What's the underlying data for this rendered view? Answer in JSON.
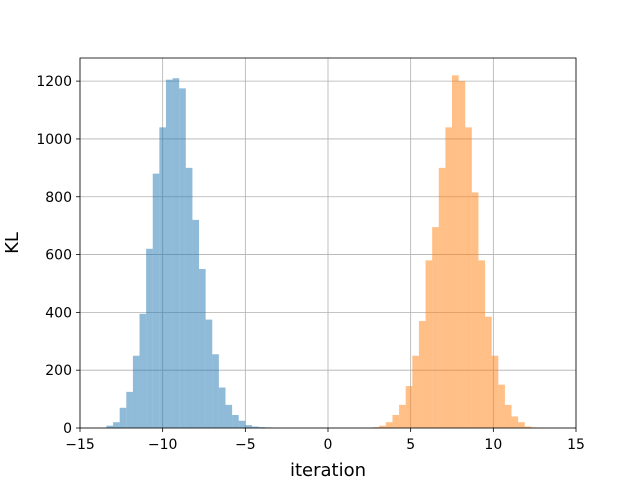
{
  "chart_data": {
    "type": "bar",
    "xlabel": "iteration",
    "ylabel": "KL",
    "xlim": [
      -15,
      15
    ],
    "ylim": [
      0,
      1280
    ],
    "x_ticks": [
      -15,
      -10,
      -5,
      0,
      5,
      10,
      15
    ],
    "x_tick_labels": [
      "−15",
      "−10",
      "−5",
      "0",
      "5",
      "10",
      "15"
    ],
    "y_ticks": [
      0,
      200,
      400,
      600,
      800,
      1000,
      1200
    ],
    "y_tick_labels": [
      "0",
      "200",
      "400",
      "600",
      "800",
      "1000",
      "1200"
    ],
    "grid": true,
    "series": [
      {
        "color": "#1f77b4",
        "alpha": 0.5,
        "bin_edges": [
          -13.4,
          -13.0,
          -12.6,
          -12.2,
          -11.8,
          -11.4,
          -11.0,
          -10.6,
          -10.2,
          -9.8,
          -9.4,
          -9.0,
          -8.6,
          -8.2,
          -7.8,
          -7.4,
          -7.0,
          -6.6,
          -6.2,
          -5.8,
          -5.4,
          -5.0,
          -4.6,
          -4.2,
          -3.8,
          -3.4,
          -3.0
        ],
        "counts": [
          8,
          20,
          70,
          125,
          250,
          395,
          620,
          880,
          1040,
          1205,
          1210,
          1175,
          900,
          720,
          550,
          375,
          255,
          140,
          80,
          45,
          25,
          10,
          5,
          3,
          2,
          1
        ]
      },
      {
        "color": "#ff7f0e",
        "alpha": 0.5,
        "bin_edges": [
          2.7,
          3.1,
          3.5,
          3.9,
          4.3,
          4.7,
          5.1,
          5.5,
          5.9,
          6.3,
          6.7,
          7.1,
          7.5,
          7.9,
          8.3,
          8.7,
          9.1,
          9.5,
          9.9,
          10.3,
          10.7,
          11.1,
          11.5,
          11.9,
          12.3,
          12.7,
          13.1
        ],
        "counts": [
          3,
          8,
          20,
          45,
          80,
          145,
          250,
          370,
          580,
          695,
          900,
          1040,
          1220,
          1200,
          1040,
          815,
          580,
          385,
          250,
          150,
          80,
          40,
          20,
          5,
          2,
          1
        ]
      }
    ]
  }
}
